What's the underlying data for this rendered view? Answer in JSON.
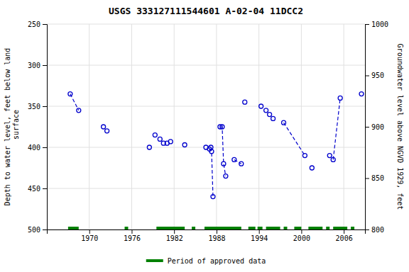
{
  "chart_data": {
    "type": "scatter",
    "title": "USGS 333127111544601 A-02-04 11DCC2",
    "ylabel": "Depth to water level, feet below land\n surface",
    "y2label": "Groundwater level above NGVD 1929, feet",
    "xlim": [
      1964,
      2009
    ],
    "xticks": [
      1970,
      1976,
      1982,
      1988,
      1994,
      2000,
      2006
    ],
    "ylim": [
      500,
      250
    ],
    "yticks": [
      250,
      300,
      350,
      400,
      450,
      500
    ],
    "y2lim": [
      800,
      1000
    ],
    "y2ticks": [
      800,
      850,
      900,
      950,
      1000
    ],
    "grid": true,
    "series": [
      {
        "type": "line",
        "line_style": "dashed",
        "color": "#0000cc",
        "x": [
          1967.3,
          1968.5
        ],
        "values": [
          335,
          355
        ]
      },
      {
        "type": "line",
        "line_style": "dashed",
        "color": "#0000cc",
        "x": [
          1987.2,
          1987.3,
          1987.5
        ],
        "values": [
          400,
          405,
          460
        ]
      },
      {
        "type": "line",
        "line_style": "dashed",
        "color": "#0000cc",
        "x": [
          1988.5,
          1988.8,
          1989.0,
          1989.3
        ],
        "values": [
          375,
          375,
          420,
          435
        ]
      },
      {
        "type": "line",
        "line_style": "dashed",
        "color": "#0000cc",
        "x": [
          1990.5,
          1991.5
        ],
        "values": [
          415,
          420
        ]
      },
      {
        "type": "line",
        "line_style": "dashed",
        "color": "#0000cc",
        "x": [
          1997.5,
          2000.5
        ],
        "values": [
          370,
          410
        ]
      },
      {
        "type": "line",
        "line_style": "dashed",
        "color": "#0000cc",
        "x": [
          2004.5,
          2005.5
        ],
        "values": [
          415,
          340
        ]
      },
      {
        "type": "scatter",
        "marker": "circle",
        "color": "#0000cc",
        "x": [
          1967.3,
          1968.5,
          1972.0,
          1972.5,
          1978.5,
          1979.3,
          1980.0,
          1980.5,
          1981.0,
          1981.5,
          1983.5,
          1986.5,
          1987.0,
          1987.2,
          1987.3,
          1987.5,
          1988.5,
          1988.8,
          1989.0,
          1989.3,
          1990.5,
          1991.5,
          1992.0,
          1994.3,
          1995.0,
          1995.5,
          1996.0,
          1997.5,
          2000.5,
          2001.5,
          2004.0,
          2004.5,
          2005.5,
          2008.5
        ],
        "values": [
          335,
          355,
          375,
          380,
          400,
          385,
          390,
          395,
          395,
          393,
          397,
          400,
          402,
          400,
          405,
          460,
          375,
          375,
          420,
          435,
          415,
          420,
          345,
          350,
          355,
          360,
          365,
          370,
          410,
          425,
          410,
          415,
          340,
          335
        ]
      },
      {
        "type": "span",
        "name": "Period of approved data",
        "color": "#008000",
        "periods": [
          [
            1967.0,
            1968.5
          ],
          [
            1975.0,
            1975.5
          ],
          [
            1979.5,
            1983.5
          ],
          [
            1984.5,
            1985.0
          ],
          [
            1986.3,
            1991.5
          ],
          [
            1992.5,
            1993.5
          ],
          [
            1993.8,
            1994.5
          ],
          [
            1995.0,
            1997.0
          ],
          [
            1997.5,
            1998.0
          ],
          [
            1999.0,
            2000.0
          ],
          [
            2001.0,
            2003.0
          ],
          [
            2003.5,
            2004.0
          ],
          [
            2004.5,
            2006.5
          ],
          [
            2007.0,
            2007.5
          ]
        ]
      }
    ]
  }
}
